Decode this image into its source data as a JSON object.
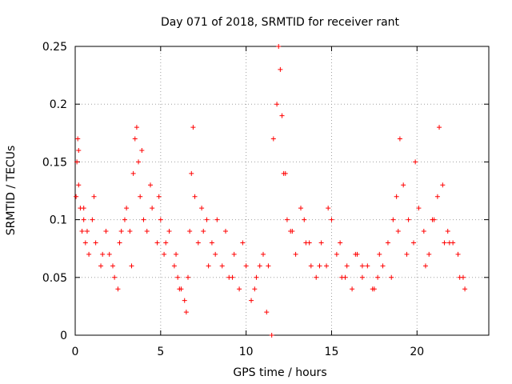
{
  "chart_data": {
    "type": "scatter",
    "title": "Day 071 of 2018, SRMTID for receiver rant",
    "xlabel": "GPS time / hours",
    "ylabel": "SRMTID / TECUs",
    "xlim": [
      0,
      24.2
    ],
    "ylim": [
      0,
      0.25
    ],
    "xticks": [
      0,
      5,
      10,
      15,
      20
    ],
    "xtick_labels": [
      "0",
      "5",
      "10",
      "15",
      "20"
    ],
    "yticks": [
      0,
      0.05,
      0.1,
      0.15,
      0.2,
      0.25
    ],
    "ytick_labels": [
      "0",
      "0.05",
      "0.1",
      "0.15",
      "0.2",
      "0.25"
    ],
    "grid": true,
    "marker": "+",
    "color": "#ff0000",
    "series": [
      {
        "name": "SRMTID",
        "x": [
          0.05,
          0.1,
          0.15,
          0.2,
          0.3,
          0.4,
          0.5,
          0.6,
          0.8,
          1.0,
          1.2,
          1.5,
          1.8,
          2.0,
          2.2,
          2.5,
          2.7,
          2.9,
          3.0,
          3.2,
          3.4,
          3.5,
          3.6,
          3.7,
          3.8,
          4.0,
          4.2,
          4.5,
          4.8,
          5.0,
          5.2,
          5.5,
          5.8,
          6.0,
          6.2,
          6.4,
          6.5,
          6.6,
          6.7,
          6.8,
          6.9,
          7.0,
          7.2,
          7.5,
          7.8,
          8.0,
          8.3,
          8.6,
          9.0,
          9.3,
          9.6,
          10.0,
          10.3,
          10.6,
          11.0,
          11.3,
          11.6,
          11.8,
          11.9,
          12.0,
          12.1,
          12.2,
          12.4,
          12.6,
          12.9,
          13.2,
          13.5,
          13.8,
          14.1,
          14.4,
          14.7,
          15.0,
          15.3,
          15.6,
          15.9,
          16.2,
          16.5,
          16.8,
          17.1,
          17.4,
          17.7,
          18.0,
          18.3,
          18.6,
          18.8,
          19.0,
          19.2,
          19.5,
          19.8,
          20.1,
          20.4,
          20.7,
          21.0,
          21.2,
          21.3,
          21.5,
          21.8,
          22.1,
          22.4,
          22.7,
          0.2,
          0.5,
          1.1,
          2.3,
          3.3,
          4.4,
          5.3,
          6.1,
          7.4,
          8.2,
          9.2,
          10.5,
          11.5,
          12.3,
          13.4,
          14.3,
          15.5,
          16.4,
          17.5,
          18.5,
          19.4,
          20.5,
          21.6,
          22.5,
          0.7,
          1.6,
          2.6,
          3.9,
          4.9,
          5.9,
          7.7,
          8.8,
          9.8,
          10.8,
          11.2,
          12.7,
          13.7,
          14.8,
          15.8,
          16.8,
          17.8,
          18.9,
          19.9,
          20.9,
          21.9,
          22.8
        ],
        "y": [
          0.12,
          0.15,
          0.17,
          0.13,
          0.11,
          0.09,
          0.1,
          0.08,
          0.07,
          0.1,
          0.08,
          0.06,
          0.09,
          0.07,
          0.06,
          0.04,
          0.09,
          0.1,
          0.11,
          0.09,
          0.14,
          0.17,
          0.18,
          0.15,
          0.12,
          0.1,
          0.09,
          0.11,
          0.08,
          0.1,
          0.07,
          0.09,
          0.06,
          0.05,
          0.04,
          0.03,
          0.02,
          0.05,
          0.09,
          0.14,
          0.18,
          0.12,
          0.08,
          0.09,
          0.06,
          0.08,
          0.1,
          0.06,
          0.05,
          0.07,
          0.04,
          0.06,
          0.03,
          0.05,
          0.07,
          0.06,
          0.17,
          0.2,
          0.25,
          0.23,
          0.19,
          0.14,
          0.1,
          0.09,
          0.07,
          0.11,
          0.08,
          0.06,
          0.05,
          0.08,
          0.06,
          0.1,
          0.07,
          0.05,
          0.06,
          0.04,
          0.07,
          0.05,
          0.06,
          0.04,
          0.05,
          0.06,
          0.08,
          0.1,
          0.12,
          0.17,
          0.13,
          0.1,
          0.08,
          0.11,
          0.09,
          0.07,
          0.1,
          0.12,
          0.18,
          0.13,
          0.09,
          0.08,
          0.07,
          0.05,
          0.16,
          0.11,
          0.12,
          0.05,
          0.06,
          0.13,
          0.08,
          0.04,
          0.11,
          0.07,
          0.05,
          0.04,
          0.0,
          0.14,
          0.1,
          0.06,
          0.08,
          0.07,
          0.04,
          0.05,
          0.07,
          0.06,
          0.08,
          0.05,
          0.09,
          0.07,
          0.08,
          0.16,
          0.12,
          0.07,
          0.1,
          0.09,
          0.08,
          0.06,
          0.02,
          0.09,
          0.08,
          0.11,
          0.05,
          0.06,
          0.07,
          0.09,
          0.15,
          0.1,
          0.08,
          0.04
        ]
      }
    ]
  }
}
